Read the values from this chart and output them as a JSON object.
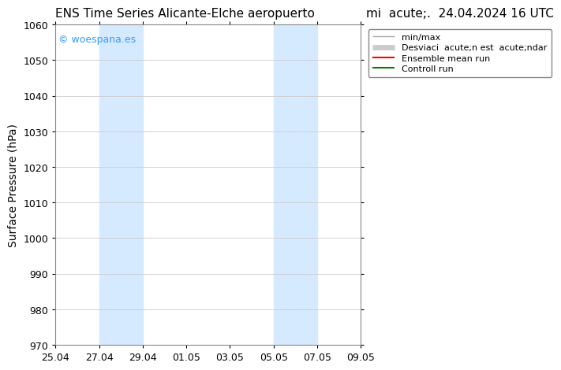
{
  "title_left": "ENS Time Series Alicante-Elche aeropuerto",
  "title_right": "mi  acute;.  24.04.2024 16 UTC",
  "ylabel": "Surface Pressure (hPa)",
  "ylim": [
    970,
    1060
  ],
  "yticks": [
    970,
    980,
    990,
    1000,
    1010,
    1020,
    1030,
    1040,
    1050,
    1060
  ],
  "xtick_labels": [
    "25.04",
    "27.04",
    "29.04",
    "01.05",
    "03.05",
    "05.05",
    "07.05",
    "09.05"
  ],
  "xtick_positions": [
    0,
    2,
    4,
    6,
    8,
    10,
    12,
    14
  ],
  "shaded_regions": [
    {
      "x_start": 2,
      "x_end": 4,
      "color": "#d6eaff",
      "alpha": 1.0
    },
    {
      "x_start": 10,
      "x_end": 12,
      "color": "#d6eaff",
      "alpha": 1.0
    }
  ],
  "watermark_text": "© woespana.es",
  "watermark_color": "#3399ff",
  "legend_labels": [
    "min/max",
    "Desviaci  acute;n est  acute;ndar",
    "Ensemble mean run",
    "Controll run"
  ],
  "legend_colors": [
    "#aaaaaa",
    "#cccccc",
    "#ff0000",
    "#008000"
  ],
  "legend_linewidths": [
    1.0,
    5,
    1.5,
    1.5
  ],
  "background_color": "#ffffff",
  "grid_color": "#cccccc",
  "border_color": "#888888",
  "title_fontsize": 11,
  "axis_label_fontsize": 10,
  "tick_fontsize": 9,
  "watermark_fontsize": 9,
  "legend_fontsize": 8
}
